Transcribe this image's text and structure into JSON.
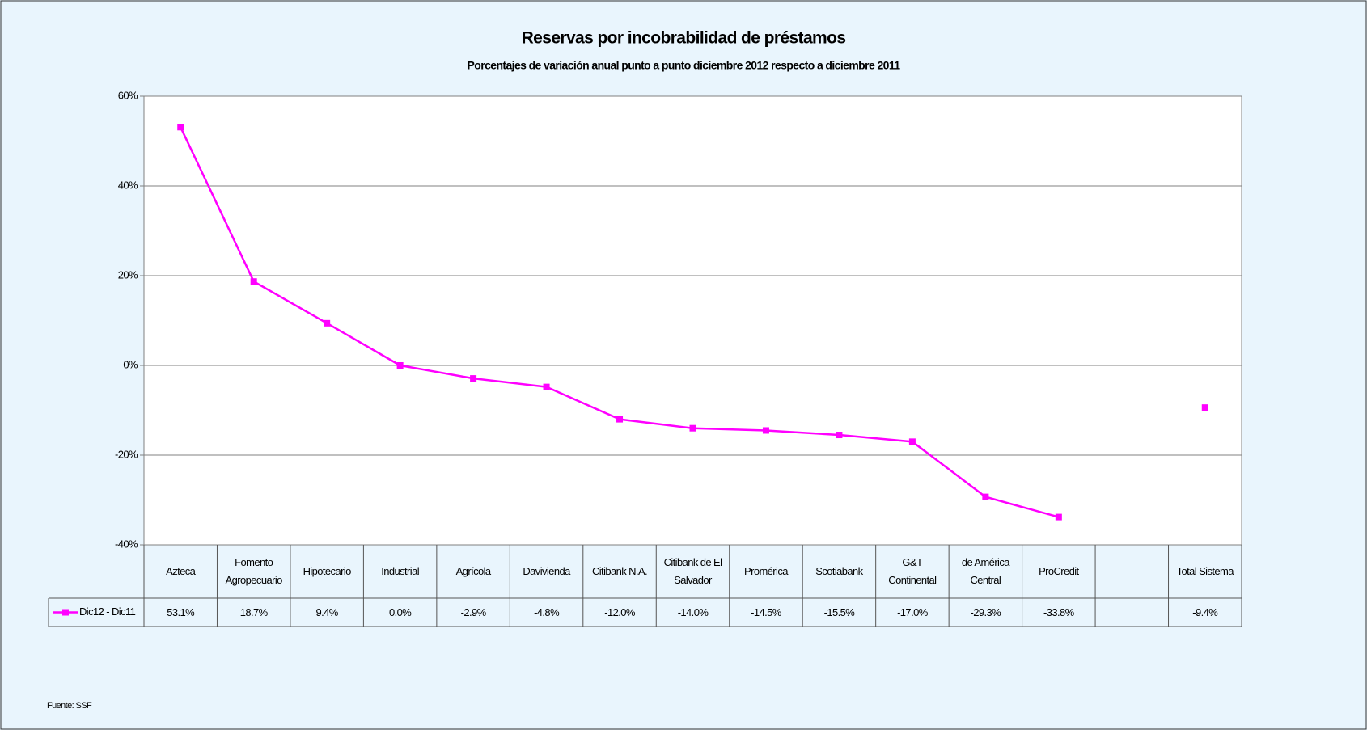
{
  "chart_data": {
    "type": "line",
    "title": "Reservas por incobrabilidad de préstamos",
    "subtitle": "Porcentajes de variación anual punto a punto diciembre 2012 respecto a diciembre 2011",
    "categories": [
      "Azteca",
      "Fomento Agropecuario",
      "Hipotecario",
      "Industrial",
      "Agrícola",
      "Davivienda",
      "Citibank N.A.",
      "Citibank de El Salvador",
      "Promérica",
      "Scotiabank",
      "G&T Continental",
      "de América Central",
      "ProCredit",
      null,
      "Total Sistema"
    ],
    "series": [
      {
        "name": "Dic12 - Dic11",
        "color": "#ff00ff",
        "values": [
          53.1,
          18.7,
          9.4,
          0.0,
          -2.9,
          -4.8,
          -12.0,
          -14.0,
          -14.5,
          -15.5,
          -17.0,
          -29.3,
          -33.8,
          null,
          -9.4
        ],
        "value_labels": [
          "53.1%",
          "18.7%",
          "9.4%",
          "0.0%",
          "-2.9%",
          "-4.8%",
          "-12.0%",
          "-14.0%",
          "-14.5%",
          "-15.5%",
          "-17.0%",
          "-29.3%",
          "-33.8%",
          null,
          "-9.4%"
        ]
      }
    ],
    "ylim": [
      -40,
      60
    ],
    "yticks": [
      {
        "value": -40,
        "label": "-40%"
      },
      {
        "value": -20,
        "label": "-20%"
      },
      {
        "value": 0,
        "label": "0%"
      },
      {
        "value": 20,
        "label": "20%"
      },
      {
        "value": 40,
        "label": "40%"
      },
      {
        "value": 60,
        "label": "60%"
      }
    ],
    "grid": true,
    "source": "Fuente: SSF"
  }
}
